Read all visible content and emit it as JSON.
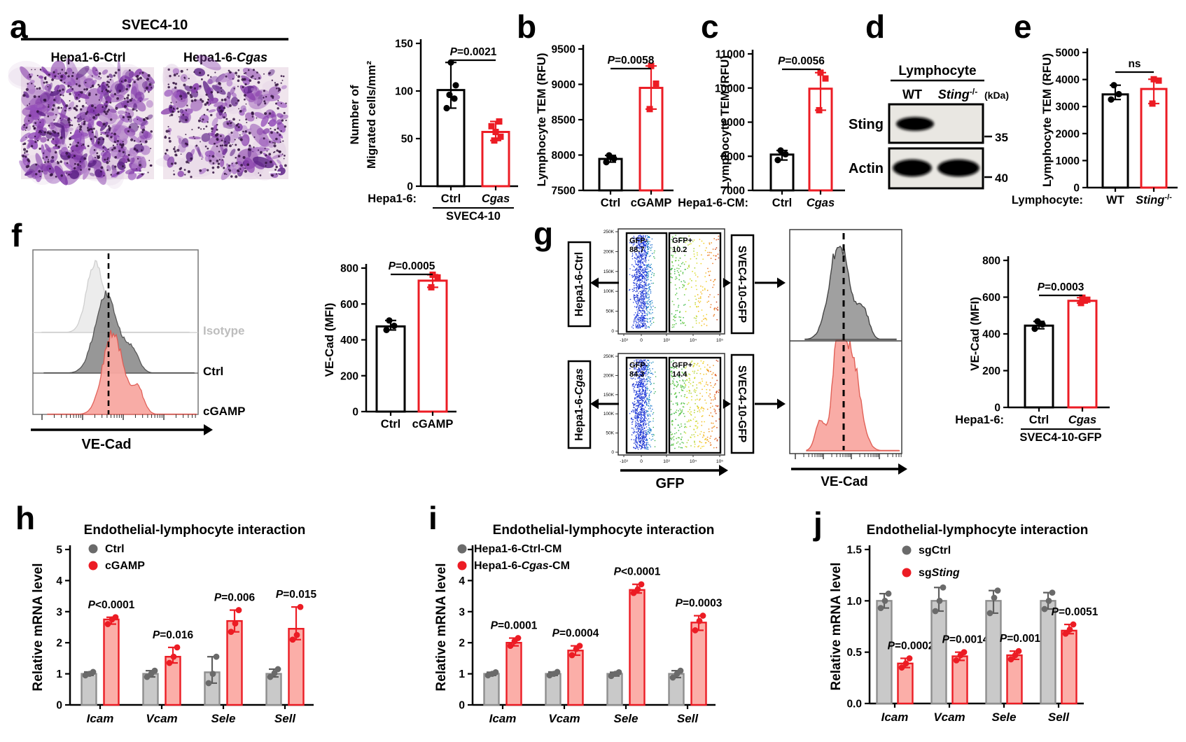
{
  "panels": {
    "a": "a",
    "b": "b",
    "c": "c",
    "d": "d",
    "e": "e",
    "f": "f",
    "g": "g",
    "h": "h",
    "i": "i",
    "j": "j"
  },
  "panel_a": {
    "header": "SVEC4-10",
    "captions": [
      "Hepa1-6-Ctrl",
      "Hepa1-6-*Cgas*"
    ]
  },
  "panel_d": {
    "header": "Lymphocyte",
    "lanes": [
      "WT",
      "*Sting*^-/-^"
    ],
    "unit": "(kDa)",
    "rows": [
      {
        "protein": "Sting",
        "marker": "35"
      },
      {
        "protein": "Actin",
        "marker": "40"
      }
    ]
  },
  "panel_f": {
    "curve_labels": [
      "Isotype",
      "Ctrl",
      "cGAMP"
    ],
    "xlabel": "VE-Cad"
  },
  "panel_g": {
    "left_boxes": [
      "Hepa1-6-Ctrl",
      "Hepa1-6-*Cgas*"
    ],
    "right_boxes": [
      "SVEC4-10-GFP",
      "SVEC4-10-GFP"
    ],
    "gates": [
      {
        "neg_label": "GFP-",
        "neg_value": "88.7",
        "pos_label": "GFP+",
        "pos_value": "10.2"
      },
      {
        "neg_label": "GFP-",
        "neg_value": "84.3",
        "pos_label": "GFP+",
        "pos_value": "14.4"
      }
    ],
    "scatter_yticks": [
      "250K",
      "200K",
      "150K",
      "100K",
      "50K",
      "0"
    ],
    "scatter_xticks": [
      "-10³",
      "0",
      "10³",
      "10⁴",
      "10⁵"
    ],
    "scatter_xlabel": "GFP",
    "hist_xlabel": "VE-Cad"
  },
  "colors": {
    "accent_red": "#EC1C24",
    "bar_gray_fill": "#C9C9C9",
    "bar_red_fill": "#FBAEA8"
  },
  "chart_data": [
    {
      "id": "a",
      "type": "bar",
      "ylabel_lines": [
        "Number of",
        "Migrated cells/mm²"
      ],
      "ylim": [
        0,
        150
      ],
      "yticks": [
        0,
        50,
        100,
        150
      ],
      "categories": [
        "Ctrl",
        "*Cgas*"
      ],
      "styles": [
        "black",
        "red"
      ],
      "values": [
        101,
        57
      ],
      "points": [
        [
          82,
          92,
          96,
          106,
          130
        ],
        [
          48,
          52,
          57,
          63,
          68
        ]
      ],
      "p": "*P*=0.0021",
      "x_prefix": "Hepa1-6:",
      "group_label": "SVEC4-10"
    },
    {
      "id": "b",
      "type": "bar",
      "ylabel_lines": [
        "Lymphocyte TEM (RFU)"
      ],
      "ylim": [
        7500,
        9500
      ],
      "yticks": [
        7500,
        8000,
        8500,
        9000,
        9500
      ],
      "categories": [
        "Ctrl",
        "cGAMP"
      ],
      "styles": [
        "black",
        "red"
      ],
      "values": [
        7945,
        8950
      ],
      "points": [
        [
          7900,
          7950,
          7995
        ],
        [
          8650,
          9010,
          9260
        ]
      ],
      "p": "*P*=0.0058"
    },
    {
      "id": "c",
      "type": "bar",
      "ylabel_lines": [
        "Lymphocyte TEM (RFU)"
      ],
      "ylim": [
        7000,
        11000
      ],
      "yticks": [
        7000,
        8000,
        9000,
        10000,
        11000
      ],
      "categories": [
        "Ctrl",
        "*Cgas*"
      ],
      "styles": [
        "black",
        "red"
      ],
      "values": [
        8050,
        9980
      ],
      "points": [
        [
          7890,
          8060,
          8170
        ],
        [
          9350,
          10280,
          10450
        ]
      ],
      "p": "*P*=0.0056",
      "x_prefix": "Hepa1-6-CM:"
    },
    {
      "id": "e",
      "type": "bar",
      "ylabel_lines": [
        "Lymphocyte TEM (RFU)"
      ],
      "ylim": [
        0,
        5000
      ],
      "yticks": [
        0,
        1000,
        2000,
        3000,
        4000,
        5000
      ],
      "categories": [
        "WT",
        "*Sting*^-/-^"
      ],
      "styles": [
        "black",
        "red"
      ],
      "values": [
        3450,
        3650
      ],
      "points": [
        [
          3260,
          3460,
          3790
        ],
        [
          3110,
          3960,
          4010
        ]
      ],
      "p": "ns",
      "x_prefix": "Lymphocyte:"
    },
    {
      "id": "f_mfi",
      "type": "bar",
      "ylabel_lines": [
        "VE-Cad (MFI)"
      ],
      "ylim": [
        0,
        800
      ],
      "yticks": [
        0,
        200,
        400,
        600,
        800
      ],
      "categories": [
        "Ctrl",
        "cGAMP"
      ],
      "styles": [
        "black",
        "red"
      ],
      "values": [
        475,
        730
      ],
      "points": [
        [
          455,
          478,
          508
        ],
        [
          693,
          748,
          763
        ]
      ],
      "p": "*P*=0.0005"
    },
    {
      "id": "g_mfi",
      "type": "bar",
      "ylabel_lines": [
        "VE-Cad (MFI)"
      ],
      "ylim": [
        0,
        800
      ],
      "yticks": [
        0,
        200,
        400,
        600,
        800
      ],
      "categories": [
        "Ctrl",
        "*Cgas*"
      ],
      "styles": [
        "black",
        "red"
      ],
      "values": [
        445,
        580
      ],
      "points": [
        [
          428,
          452,
          468
        ],
        [
          568,
          586,
          597
        ]
      ],
      "p": "*P*=0.0003",
      "x_prefix": "Hepa1-6:",
      "group_label": "SVEC4-10-GFP"
    },
    {
      "id": "h",
      "type": "grouped_bar",
      "title": "Endothelial-lymphocyte interaction",
      "ylabel": "Relative mRNA level",
      "ylim": [
        0,
        5
      ],
      "yticks": [
        0,
        1,
        2,
        3,
        4,
        5
      ],
      "categories": [
        "*Icam*",
        "*Vcam*",
        "*Sele*",
        "*Sell*"
      ],
      "series": [
        {
          "name": "Ctrl",
          "key": "gray",
          "values": [
            1.0,
            1.0,
            1.05,
            1.0
          ],
          "points": [
            [
              0.95,
              1.0,
              1.06
            ],
            [
              0.9,
              1.0,
              1.1
            ],
            [
              0.7,
              1.0,
              1.55
            ],
            [
              0.9,
              1.02,
              1.15
            ]
          ]
        },
        {
          "name": "cGAMP",
          "key": "red",
          "values": [
            2.75,
            1.55,
            2.7,
            2.45
          ],
          "points": [
            [
              2.6,
              2.75,
              2.82
            ],
            [
              1.35,
              1.55,
              1.85
            ],
            [
              2.35,
              2.62,
              3.05
            ],
            [
              2.1,
              2.25,
              3.15
            ]
          ]
        }
      ],
      "pvalues": [
        "*P*<0.0001",
        "*P*=0.016",
        "*P*=0.006",
        "*P*=0.015"
      ]
    },
    {
      "id": "i",
      "type": "grouped_bar",
      "title": "Endothelial-lymphocyte interaction",
      "ylabel": "Relative mRNA level",
      "ylim": [
        0,
        5
      ],
      "yticks": [
        0,
        1,
        2,
        3,
        4,
        5
      ],
      "categories": [
        "*Icam*",
        "*Vcam*",
        "*Sele*",
        "*Sell*"
      ],
      "series": [
        {
          "name": "Hepa1-6-Ctrl-CM",
          "key": "gray",
          "values": [
            1.0,
            1.0,
            1.0,
            1.0
          ],
          "points": [
            [
              0.95,
              1.0,
              1.05
            ],
            [
              0.95,
              1.0,
              1.06
            ],
            [
              0.93,
              1.0,
              1.05
            ],
            [
              0.88,
              1.0,
              1.1
            ]
          ]
        },
        {
          "name": "Hepa1-6-*Cgas*-CM",
          "key": "red",
          "values": [
            2.0,
            1.75,
            3.7,
            2.65
          ],
          "points": [
            [
              1.9,
              2.05,
              2.15
            ],
            [
              1.6,
              1.8,
              1.9
            ],
            [
              3.6,
              3.72,
              3.88
            ],
            [
              2.4,
              2.7,
              2.87
            ]
          ]
        }
      ],
      "pvalues": [
        "*P*=0.0001",
        "*P*=0.0004",
        "*P*<0.0001",
        "*P*=0.0003"
      ]
    },
    {
      "id": "j",
      "type": "grouped_bar",
      "title": "Endothelial-lymphocyte interaction",
      "ylabel": "Relative mRNA level",
      "ylim": [
        0,
        1.5
      ],
      "yticks": [
        0,
        0.5,
        1,
        1.5
      ],
      "ytick_labels": [
        "0.0",
        "0.5",
        "1.0",
        "1.5"
      ],
      "categories": [
        "*Icam*",
        "*Vcam*",
        "*Sele*",
        "*Sell*"
      ],
      "series": [
        {
          "name": "sgCtrl",
          "key": "gray",
          "values": [
            1.0,
            1.0,
            1.0,
            1.0
          ],
          "points": [
            [
              0.93,
              1.0,
              1.07
            ],
            [
              0.9,
              1.0,
              1.13
            ],
            [
              0.88,
              1.03,
              1.1
            ],
            [
              0.92,
              1.0,
              1.08
            ]
          ]
        },
        {
          "name": "sg*Sting*",
          "key": "red",
          "values": [
            0.39,
            0.46,
            0.47,
            0.71
          ],
          "points": [
            [
              0.35,
              0.39,
              0.44
            ],
            [
              0.42,
              0.47,
              0.5
            ],
            [
              0.43,
              0.47,
              0.51
            ],
            [
              0.68,
              0.72,
              0.77
            ]
          ]
        }
      ],
      "pvalues": [
        "*P*=0.0002",
        "*P*=0.0014",
        "*P*=0.001",
        "*P*=0.0051"
      ]
    }
  ]
}
